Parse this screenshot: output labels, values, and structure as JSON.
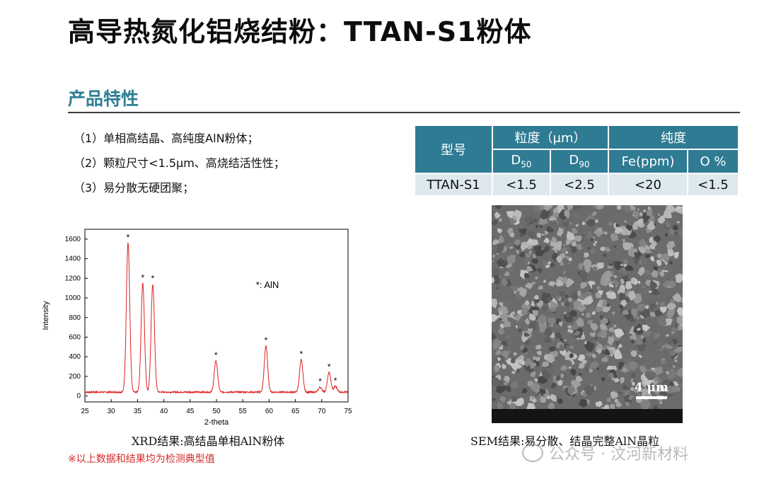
{
  "title": "高导热氮化铝烧结粉：TTAN-S1粉体",
  "section_title": "产品特性",
  "features": [
    "（1）单相高结晶、高纯度AlN粉体；",
    "（2）颗粒尺寸<1.5μm、高烧结活性性；",
    "（3）易分散无硬团聚；"
  ],
  "spec_table": {
    "model_header": "型号",
    "particle_header": "粒度（μm）",
    "purity_header": "纯度",
    "d50_main": "D",
    "d50_sub": "50",
    "d90_main": "D",
    "d90_sub": "90",
    "fe_header": "Fe(ppm)",
    "o_header": "O %",
    "row": {
      "model": "TTAN-S1",
      "d50": "<1.5",
      "d90": "<2.5",
      "fe": "<20",
      "o": "<1.5"
    }
  },
  "chart_data": {
    "type": "line",
    "xlabel": "2-theta",
    "ylabel": "Intensity",
    "xlim": [
      25,
      75
    ],
    "ylim": [
      -60,
      1700
    ],
    "xticks": [
      25,
      30,
      35,
      40,
      45,
      50,
      55,
      60,
      65,
      70,
      75
    ],
    "yticks": [
      0,
      200,
      400,
      600,
      800,
      1000,
      1200,
      1400,
      1600
    ],
    "legend_text": "*: AlN",
    "line_color": "#e02020",
    "baseline": 40,
    "peaks": [
      {
        "x": 33.2,
        "y": 1560
      },
      {
        "x": 36.0,
        "y": 1150
      },
      {
        "x": 37.9,
        "y": 1140
      },
      {
        "x": 49.9,
        "y": 360
      },
      {
        "x": 59.4,
        "y": 510
      },
      {
        "x": 66.1,
        "y": 370
      },
      {
        "x": 69.7,
        "y": 90
      },
      {
        "x": 71.4,
        "y": 240
      },
      {
        "x": 72.6,
        "y": 100
      }
    ],
    "marker_text": "*"
  },
  "xrd_caption": "XRD结果:高结晶单相AlN粉体",
  "note": "※以上数据和结果均为检测典型值",
  "sem": {
    "scale_label": "4 μm",
    "caption": "SEM结果:易分散、结晶完整AlN晶粒"
  },
  "watermark": "公众号 · 汶河新材料"
}
